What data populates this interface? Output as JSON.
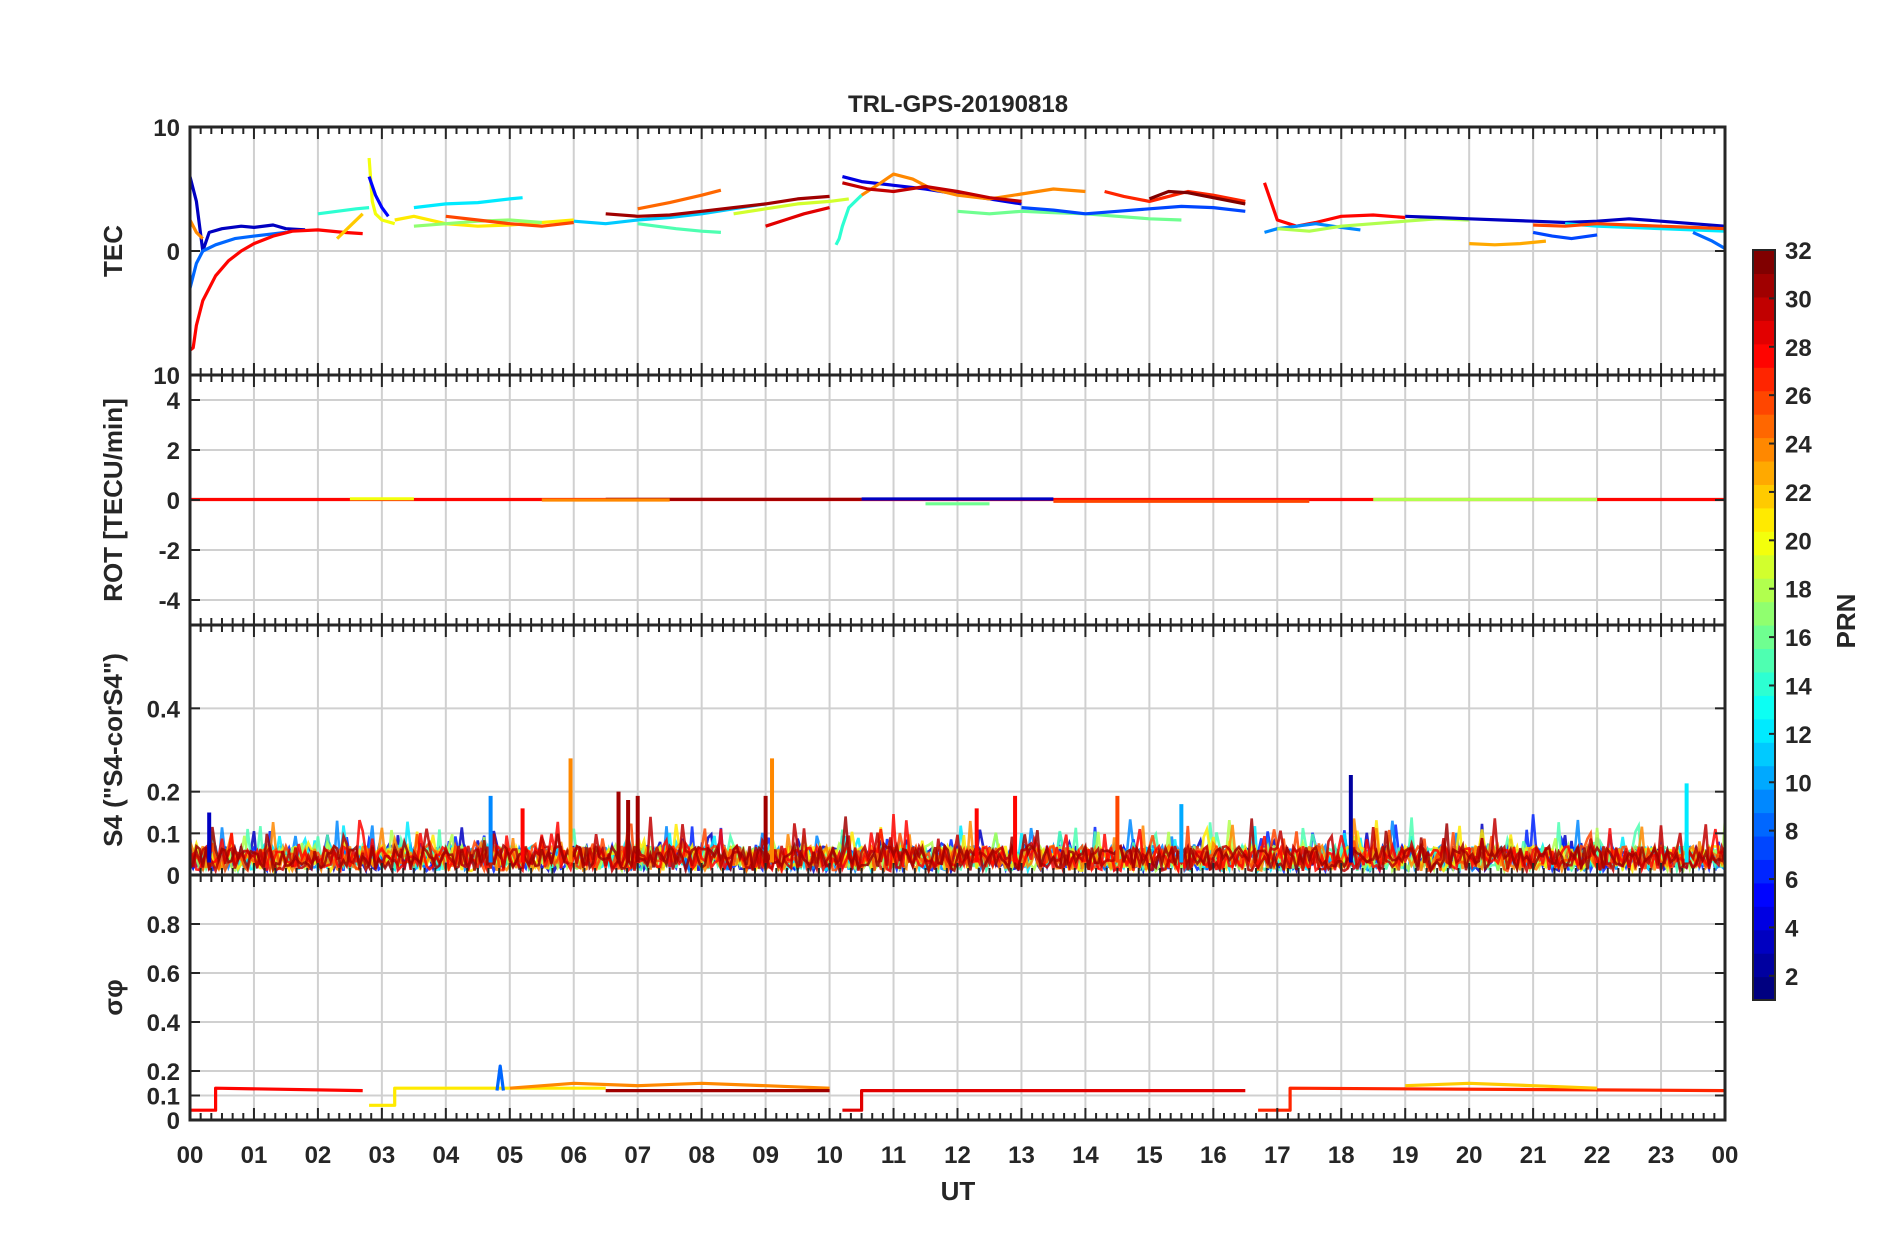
{
  "chart_data": {
    "type": "line",
    "title": "TRL-GPS-20190818",
    "xlabel": "UT",
    "x_tick_labels": [
      "00",
      "01",
      "02",
      "03",
      "04",
      "05",
      "06",
      "07",
      "08",
      "09",
      "10",
      "11",
      "12",
      "13",
      "14",
      "15",
      "16",
      "17",
      "18",
      "19",
      "20",
      "21",
      "22",
      "23",
      "00"
    ],
    "xlim_hours": [
      0,
      24
    ],
    "grid": true,
    "colormap": "jet",
    "colorbar": {
      "label": "PRN",
      "range": [
        1,
        32
      ],
      "tick_labels": [
        "2",
        "4",
        "6",
        "8",
        "10",
        "12",
        "14",
        "16",
        "18",
        "20",
        "22",
        "24",
        "26",
        "28",
        "30",
        "32"
      ]
    },
    "panels": [
      {
        "ylabel": "TEC",
        "ylim": [
          -10,
          10
        ],
        "ytick_labels": [
          "10",
          "0",
          "10"
        ],
        "series": [
          {
            "prn": 3,
            "x": [
              0.0,
              0.1,
              0.2,
              0.3,
              0.5,
              0.8,
              1.0,
              1.3,
              1.5,
              1.8
            ],
            "y": [
              6,
              4,
              0,
              1.5,
              1.8,
              2,
              1.9,
              2.1,
              1.8,
              1.7
            ]
          },
          {
            "prn": 8,
            "x": [
              0.0,
              0.1,
              0.2,
              0.4,
              0.7,
              1.0,
              1.5
            ],
            "y": [
              -3,
              -1,
              0,
              0.5,
              1,
              1.2,
              1.5
            ]
          },
          {
            "prn": 28,
            "x": [
              0.0,
              0.05,
              0.1,
              0.2,
              0.4,
              0.6,
              0.8,
              1.0,
              1.3,
              1.6,
              2.0,
              2.4,
              2.7
            ],
            "y": [
              -8,
              -7.8,
              -6,
              -4,
              -2,
              -0.8,
              0,
              0.6,
              1.2,
              1.6,
              1.7,
              1.5,
              1.4
            ]
          },
          {
            "prn": 24,
            "x": [
              0.0,
              0.1,
              0.2
            ],
            "y": [
              2.5,
              1.5,
              1.0
            ]
          },
          {
            "prn": 22,
            "x": [
              2.3,
              2.5,
              2.7
            ],
            "y": [
              1.0,
              2.0,
              3.0
            ]
          },
          {
            "prn": 14,
            "x": [
              2.0,
              2.3,
              2.6,
              2.8
            ],
            "y": [
              3.0,
              3.2,
              3.4,
              3.5
            ]
          },
          {
            "prn": 20,
            "x": [
              2.8,
              2.85,
              2.9,
              3.0,
              3.2
            ],
            "y": [
              7.5,
              4.0,
              3.0,
              2.5,
              2.2
            ]
          },
          {
            "prn": 5,
            "x": [
              2.8,
              2.9,
              3.0,
              3.1
            ],
            "y": [
              6.0,
              4.5,
              3.5,
              2.8
            ]
          },
          {
            "prn": 12,
            "x": [
              3.5,
              4.0,
              4.5,
              5.0,
              5.2
            ],
            "y": [
              3.5,
              3.8,
              3.9,
              4.2,
              4.3
            ]
          },
          {
            "prn": 21,
            "x": [
              3.2,
              3.5,
              4.0,
              4.5,
              5.0,
              5.5,
              6.0
            ],
            "y": [
              2.5,
              2.8,
              2.2,
              2.0,
              2.1,
              2.3,
              2.5
            ]
          },
          {
            "prn": 17,
            "x": [
              3.5,
              4.0,
              4.5,
              5.0,
              5.5
            ],
            "y": [
              2.0,
              2.2,
              2.4,
              2.5,
              2.3
            ]
          },
          {
            "prn": 26,
            "x": [
              4.0,
              4.5,
              5.0,
              5.5,
              6.0
            ],
            "y": [
              2.8,
              2.5,
              2.2,
              2.0,
              2.3
            ]
          },
          {
            "prn": 11,
            "x": [
              6.0,
              6.5,
              7.0,
              7.5,
              8.0,
              8.5,
              9.0
            ],
            "y": [
              2.4,
              2.2,
              2.5,
              2.7,
              3.0,
              3.4,
              3.8
            ]
          },
          {
            "prn": 15,
            "x": [
              7.0,
              7.3,
              7.6,
              8.0,
              8.3
            ],
            "y": [
              2.2,
              2.0,
              1.8,
              1.6,
              1.5
            ]
          },
          {
            "prn": 25,
            "x": [
              7.0,
              7.5,
              8.0,
              8.3
            ],
            "y": [
              3.4,
              3.9,
              4.5,
              4.9
            ]
          },
          {
            "prn": 31,
            "x": [
              6.5,
              7.0,
              7.5,
              8.0,
              8.5,
              9.0,
              9.5,
              10.0
            ],
            "y": [
              3.0,
              2.8,
              2.9,
              3.2,
              3.5,
              3.8,
              4.2,
              4.4
            ]
          },
          {
            "prn": 29,
            "x": [
              9.0,
              9.3,
              9.6,
              10.0
            ],
            "y": [
              2.0,
              2.5,
              3.0,
              3.5
            ]
          },
          {
            "prn": 19,
            "x": [
              8.5,
              9.0,
              9.5,
              10.0,
              10.3
            ],
            "y": [
              3.0,
              3.4,
              3.8,
              4.0,
              4.2
            ]
          },
          {
            "prn": 14,
            "x": [
              10.1,
              10.15,
              10.2,
              10.3,
              10.5
            ],
            "y": [
              0.5,
              1.0,
              2.0,
              3.5,
              4.5
            ]
          },
          {
            "prn": 4,
            "x": [
              10.2,
              10.5,
              11.0,
              11.5,
              12.0,
              12.5,
              13.0
            ],
            "y": [
              6.0,
              5.6,
              5.3,
              5.0,
              4.6,
              4.2,
              3.8
            ]
          },
          {
            "prn": 24,
            "x": [
              10.5,
              10.8,
              11.0,
              11.3,
              11.6,
              12.0,
              12.5,
              13.0,
              13.5,
              14.0
            ],
            "y": [
              4.5,
              5.5,
              6.2,
              5.8,
              5.0,
              4.5,
              4.2,
              4.6,
              5.0,
              4.8
            ]
          },
          {
            "prn": 30,
            "x": [
              10.2,
              10.6,
              11.0,
              11.5,
              12.0,
              12.5,
              13.0
            ],
            "y": [
              5.5,
              5.0,
              4.8,
              5.2,
              4.8,
              4.3,
              4.0
            ]
          },
          {
            "prn": 16,
            "x": [
              12.0,
              12.5,
              13.0,
              13.5,
              14.0,
              14.5,
              15.0,
              15.5
            ],
            "y": [
              3.2,
              3.0,
              3.2,
              3.1,
              3.0,
              2.8,
              2.6,
              2.5
            ]
          },
          {
            "prn": 7,
            "x": [
              13.0,
              13.5,
              14.0,
              14.5,
              15.0,
              15.5,
              16.0,
              16.5
            ],
            "y": [
              3.5,
              3.3,
              3.0,
              3.2,
              3.4,
              3.6,
              3.5,
              3.2
            ]
          },
          {
            "prn": 27,
            "x": [
              14.3,
              14.6,
              15.0,
              15.3,
              15.6,
              16.0,
              16.5
            ],
            "y": [
              4.8,
              4.4,
              4.0,
              4.4,
              4.8,
              4.5,
              4.0
            ]
          },
          {
            "prn": 32,
            "x": [
              15.0,
              15.3,
              15.6,
              16.0,
              16.5
            ],
            "y": [
              4.2,
              4.8,
              4.7,
              4.3,
              3.8
            ]
          },
          {
            "prn": 28,
            "x": [
              16.8,
              16.9,
              17.0,
              17.3,
              17.6,
              18.0,
              18.5,
              19.0
            ],
            "y": [
              5.5,
              4.0,
              2.5,
              2.0,
              2.3,
              2.8,
              2.9,
              2.7
            ]
          },
          {
            "prn": 9,
            "x": [
              16.8,
              17.0,
              17.3,
              17.6,
              18.0,
              18.3
            ],
            "y": [
              1.5,
              1.8,
              2.0,
              2.2,
              1.9,
              1.7
            ]
          },
          {
            "prn": 18,
            "x": [
              17.0,
              17.5,
              18.0,
              18.5,
              19.0,
              19.5,
              20.0
            ],
            "y": [
              1.8,
              1.6,
              2.0,
              2.2,
              2.4,
              2.6,
              2.5
            ]
          },
          {
            "prn": 3,
            "x": [
              19.0,
              19.5,
              20.0,
              20.5,
              21.0,
              21.5,
              22.0,
              22.5,
              23.0,
              23.5,
              24.0
            ],
            "y": [
              2.8,
              2.7,
              2.6,
              2.5,
              2.4,
              2.3,
              2.4,
              2.6,
              2.4,
              2.2,
              2.0
            ]
          },
          {
            "prn": 23,
            "x": [
              20.0,
              20.4,
              20.8,
              21.2
            ],
            "y": [
              0.6,
              0.5,
              0.6,
              0.8
            ]
          },
          {
            "prn": 7,
            "x": [
              21.0,
              21.3,
              21.6,
              22.0
            ],
            "y": [
              1.5,
              1.2,
              1.0,
              1.3
            ]
          },
          {
            "prn": 12,
            "x": [
              21.5,
              22.0,
              22.5,
              23.0,
              23.5,
              24.0
            ],
            "y": [
              2.2,
              2.0,
              1.9,
              1.8,
              1.7,
              1.6
            ]
          },
          {
            "prn": 26,
            "x": [
              21.0,
              21.5,
              22.0,
              22.5,
              23.0,
              23.5,
              24.0
            ],
            "y": [
              2.1,
              2.0,
              2.2,
              2.1,
              2.0,
              1.9,
              1.8
            ]
          },
          {
            "prn": 8,
            "x": [
              23.5,
              23.8,
              24.0
            ],
            "y": [
              1.5,
              0.8,
              0.2
            ]
          }
        ]
      },
      {
        "ylabel": "ROT [TECU/min]",
        "ylim": [
          -5,
          5
        ],
        "ytick_labels": [
          "4",
          "2",
          "0",
          "-2",
          "-4"
        ],
        "series": [
          {
            "prn": 28,
            "x": [
              0,
              24
            ],
            "y": [
              0.02,
              0.02
            ]
          },
          {
            "prn": 20,
            "x": [
              2.5,
              3.5
            ],
            "y": [
              0.05,
              0.05
            ]
          },
          {
            "prn": 31,
            "x": [
              6.5,
              10.5
            ],
            "y": [
              0.03,
              0.03
            ]
          },
          {
            "prn": 24,
            "x": [
              5.5,
              7.5
            ],
            "y": [
              0.0,
              0.0
            ]
          },
          {
            "prn": 3,
            "x": [
              10.5,
              13.5
            ],
            "y": [
              0.04,
              0.04
            ]
          },
          {
            "prn": 16,
            "x": [
              11.5,
              12.5
            ],
            "y": [
              -0.15,
              -0.15
            ]
          },
          {
            "prn": 26,
            "x": [
              13.5,
              17.5
            ],
            "y": [
              -0.05,
              -0.05
            ]
          },
          {
            "prn": 18,
            "x": [
              18.5,
              22.0
            ],
            "y": [
              0.02,
              0.02
            ]
          }
        ]
      },
      {
        "ylabel": "S4 (\"S4-corS4\")",
        "ylim": [
          0,
          0.6
        ],
        "ytick_labels": [
          "0.4",
          "0.2",
          "0.1",
          "0"
        ],
        "baseline": 0.04,
        "spikes": [
          {
            "prn": 24,
            "x": 5.95,
            "y": 0.28
          },
          {
            "prn": 24,
            "x": 9.1,
            "y": 0.28
          },
          {
            "prn": 31,
            "x": 6.7,
            "y": 0.2
          },
          {
            "prn": 31,
            "x": 6.85,
            "y": 0.18
          },
          {
            "prn": 31,
            "x": 7.0,
            "y": 0.19
          },
          {
            "prn": 31,
            "x": 9.0,
            "y": 0.19
          },
          {
            "prn": 2,
            "x": 18.15,
            "y": 0.24
          },
          {
            "prn": 12,
            "x": 23.4,
            "y": 0.22
          },
          {
            "prn": 9,
            "x": 4.7,
            "y": 0.19
          },
          {
            "prn": 28,
            "x": 12.9,
            "y": 0.19
          },
          {
            "prn": 26,
            "x": 14.5,
            "y": 0.19
          },
          {
            "prn": 28,
            "x": 5.2,
            "y": 0.16
          },
          {
            "prn": 10,
            "x": 15.5,
            "y": 0.17
          },
          {
            "prn": 28,
            "x": 12.3,
            "y": 0.16
          },
          {
            "prn": 3,
            "x": 0.3,
            "y": 0.15
          }
        ]
      },
      {
        "ylabel": "σφ",
        "ylim": [
          0,
          1
        ],
        "ytick_labels": [
          "0.8",
          "0.6",
          "0.4",
          "0.2",
          "0.1",
          "0"
        ],
        "series": [
          {
            "prn": 28,
            "x": [
              0.0,
              0.4,
              0.4,
              2.7
            ],
            "y": [
              0.04,
              0.04,
              0.13,
              0.12
            ]
          },
          {
            "prn": 21,
            "x": [
              2.8,
              3.2,
              3.2,
              6.5
            ],
            "y": [
              0.06,
              0.06,
              0.13,
              0.13
            ]
          },
          {
            "prn": 24,
            "x": [
              5.0,
              6.0,
              7.0,
              8.0,
              9.0,
              10.0
            ],
            "y": [
              0.13,
              0.15,
              0.14,
              0.15,
              0.14,
              0.13
            ]
          },
          {
            "prn": 31,
            "x": [
              6.5,
              10.0
            ],
            "y": [
              0.12,
              0.12
            ]
          },
          {
            "prn": 29,
            "x": [
              10.2,
              10.5,
              10.5,
              16.5
            ],
            "y": [
              0.04,
              0.04,
              0.12,
              0.12
            ]
          },
          {
            "prn": 27,
            "x": [
              16.7,
              17.2,
              17.2,
              24.0
            ],
            "y": [
              0.04,
              0.04,
              0.13,
              0.12
            ]
          },
          {
            "prn": 22,
            "x": [
              19.0,
              20.0,
              21.0,
              22.0
            ],
            "y": [
              0.14,
              0.15,
              0.14,
              0.13
            ]
          },
          {
            "prn": 8,
            "x": [
              4.8,
              4.85,
              4.9
            ],
            "y": [
              0.12,
              0.22,
              0.12
            ]
          }
        ]
      }
    ]
  }
}
